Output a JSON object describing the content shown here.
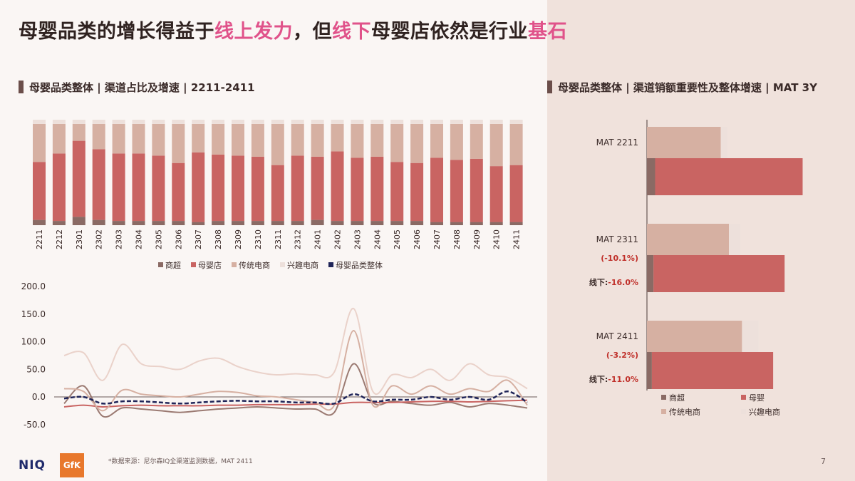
{
  "page": {
    "title_parts": [
      {
        "text": "母婴品类的增长得益于",
        "hl": false
      },
      {
        "text": "线上发力",
        "hl": true
      },
      {
        "text": "，但",
        "hl": false
      },
      {
        "text": "线下",
        "hl": true
      },
      {
        "text": "母婴店依然是行业",
        "hl": false
      },
      {
        "text": "基石",
        "hl": true
      }
    ],
    "left_section_title": "母婴品类整体 | 渠道占比及增速 | 2211-2411",
    "right_section_title": "母婴品类整体 | 渠道销额重要性及整体增速 | MAT 3Y",
    "footnote": "*数据来源：尼尔森IQ全渠道监测数据，MAT 2411",
    "page_number": "7",
    "logo_text": "NIQ",
    "gfk_text": "GfK"
  },
  "chart_data": [
    {
      "type": "bar",
      "stacked": true,
      "percent_stacked": true,
      "categories": [
        "2211",
        "2212",
        "2301",
        "2302",
        "2303",
        "2304",
        "2305",
        "2306",
        "2307",
        "2308",
        "2309",
        "2310",
        "2311",
        "2312",
        "2401",
        "2402",
        "2403",
        "2404",
        "2405",
        "2406",
        "2407",
        "2408",
        "2409",
        "2410",
        "2411"
      ],
      "series": [
        {
          "name": "商超",
          "color": "#8a6a64",
          "values": [
            5,
            4,
            8,
            5,
            4,
            4,
            4,
            4,
            3,
            4,
            4,
            4,
            4,
            4,
            5,
            4,
            4,
            4,
            4,
            4,
            3,
            3,
            3,
            3,
            3
          ]
        },
        {
          "name": "母婴店",
          "color": "#c96462",
          "values": [
            55,
            64,
            72,
            67,
            64,
            64,
            62,
            55,
            66,
            63,
            62,
            61,
            53,
            62,
            60,
            66,
            60,
            61,
            56,
            55,
            61,
            59,
            60,
            53,
            54
          ]
        },
        {
          "name": "传统电商",
          "color": "#d6b0a2",
          "values": [
            36,
            28,
            16,
            24,
            28,
            28,
            30,
            37,
            27,
            29,
            30,
            31,
            39,
            30,
            31,
            26,
            32,
            31,
            36,
            37,
            32,
            34,
            33,
            40,
            39
          ]
        },
        {
          "name": "兴趣电商",
          "color": "#ede0db",
          "values": [
            4,
            4,
            4,
            4,
            4,
            4,
            4,
            4,
            4,
            4,
            4,
            4,
            4,
            4,
            4,
            4,
            4,
            4,
            4,
            4,
            4,
            4,
            4,
            4,
            4
          ]
        }
      ],
      "legend": [
        "商超",
        "母婴店",
        "传统电商",
        "兴趣电商",
        "母婴品类整体"
      ],
      "legend_position": "bottom"
    },
    {
      "type": "line",
      "x": [
        "2211",
        "2212",
        "2301",
        "2302",
        "2303",
        "2304",
        "2305",
        "2306",
        "2307",
        "2308",
        "2309",
        "2310",
        "2311",
        "2312",
        "2401",
        "2402",
        "2403",
        "2404",
        "2405",
        "2406",
        "2407",
        "2408",
        "2409",
        "2410",
        "2411"
      ],
      "ylim": [
        -50,
        200
      ],
      "yticks": [
        "200.0",
        "150.0",
        "100.0",
        "50.0",
        "0.0",
        "-50.0"
      ],
      "series": [
        {
          "name": "商超",
          "color": "#9b7a72",
          "values": [
            -12,
            20,
            -35,
            -20,
            -22,
            -25,
            -28,
            -25,
            -22,
            -20,
            -18,
            -20,
            -22,
            -22,
            -28,
            60,
            -10,
            -8,
            -12,
            -15,
            -10,
            -18,
            -12,
            -15,
            -20
          ]
        },
        {
          "name": "母婴店",
          "color": "#c96462",
          "values": [
            -18,
            -15,
            -18,
            -16,
            -15,
            -16,
            -16,
            -16,
            -15,
            -15,
            -14,
            -14,
            -14,
            -13,
            -13,
            -10,
            -10,
            -10,
            -9,
            -8,
            -8,
            -9,
            -8,
            -7,
            -6
          ]
        },
        {
          "name": "传统电商",
          "color": "#d6b0a2",
          "values": [
            15,
            10,
            -25,
            12,
            5,
            2,
            0,
            5,
            10,
            8,
            2,
            0,
            -5,
            -10,
            -15,
            120,
            -15,
            20,
            5,
            20,
            5,
            15,
            10,
            30,
            -15
          ]
        },
        {
          "name": "兴趣电商",
          "color": "#ead2ca",
          "values": [
            75,
            80,
            30,
            95,
            60,
            55,
            50,
            65,
            70,
            55,
            45,
            40,
            42,
            40,
            45,
            160,
            10,
            40,
            35,
            50,
            30,
            60,
            40,
            35,
            15
          ]
        },
        {
          "name": "母婴品类整体",
          "color": "#1f2458",
          "dashed": true,
          "values": [
            -3,
            0,
            -12,
            -8,
            -8,
            -10,
            -12,
            -10,
            -8,
            -7,
            -8,
            -8,
            -10,
            -10,
            -12,
            5,
            -8,
            -5,
            -5,
            0,
            -5,
            0,
            -5,
            10,
            -10
          ]
        }
      ]
    },
    {
      "type": "bar",
      "orientation": "horizontal",
      "groups": [
        {
          "label": "MAT 2211",
          "overall_growth": "",
          "offline_growth": "",
          "offline_label": "",
          "offline_values": {
            "商超": 5,
            "母婴": 90
          },
          "online_values": {
            "传统电商": 45,
            "兴趣电商": 4
          }
        },
        {
          "label": "MAT 2311",
          "overall_growth": "(-10.1%)",
          "offline_growth": "-16.0%",
          "offline_label": "线下:",
          "offline_values": {
            "商超": 4,
            "母婴": 80
          },
          "online_values": {
            "传统电商": 50,
            "兴趣电商": 7
          }
        },
        {
          "label": "MAT 2411",
          "overall_growth": "(-3.2%)",
          "offline_growth": "-11.0%",
          "offline_label": "线下:",
          "offline_values": {
            "商超": 3,
            "母婴": 74
          },
          "online_values": {
            "传统电商": 58,
            "兴趣电商": 10
          }
        }
      ],
      "colors": {
        "商超": "#8a6a64",
        "母婴": "#c96462",
        "传统电商": "#d6b0a2",
        "兴趣电商": "#ede0db"
      },
      "legend": [
        "商超",
        "母婴",
        "传统电商",
        "兴趣电商"
      ],
      "legend_position": "bottom"
    }
  ]
}
